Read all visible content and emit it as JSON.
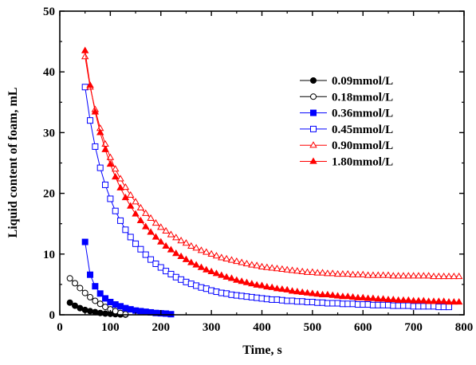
{
  "chart_data": {
    "type": "scatter",
    "title": "",
    "xlabel": "Time, s",
    "ylabel": "Liquid content of foam, mL",
    "xlim": [
      0,
      800
    ],
    "ylim": [
      0,
      50
    ],
    "xticks": [
      "0",
      "100",
      "200",
      "300",
      "400",
      "500",
      "600",
      "700",
      "800"
    ],
    "yticks": [
      "0",
      "10",
      "20",
      "30",
      "40",
      "50"
    ],
    "grid": false,
    "legend_position": "top-right",
    "series": [
      {
        "name": "0.09mmol/L",
        "color": "#000000",
        "marker": "circle",
        "filled": true,
        "x": [
          20,
          30,
          40,
          50,
          60,
          70,
          80,
          90,
          100,
          110,
          120,
          130
        ],
        "y": [
          2.0,
          1.5,
          1.1,
          0.8,
          0.6,
          0.45,
          0.3,
          0.2,
          0.15,
          0.1,
          0.05,
          0.02
        ]
      },
      {
        "name": "0.18mmol/L",
        "color": "#000000",
        "marker": "circle",
        "filled": false,
        "x": [
          20,
          30,
          40,
          50,
          60,
          70,
          80,
          90,
          100,
          110,
          120,
          130
        ],
        "y": [
          6.0,
          5.2,
          4.4,
          3.6,
          2.9,
          2.3,
          1.8,
          1.3,
          0.9,
          0.6,
          0.3,
          0.1
        ]
      },
      {
        "name": "0.36mmol/L",
        "color": "#0000ff",
        "marker": "square",
        "filled": true,
        "x": [
          50,
          60,
          70,
          80,
          90,
          100,
          110,
          120,
          130,
          140,
          150,
          160,
          170,
          180,
          190,
          200,
          210,
          220
        ],
        "y": [
          12.0,
          6.6,
          4.7,
          3.5,
          2.7,
          2.1,
          1.7,
          1.4,
          1.1,
          0.9,
          0.7,
          0.6,
          0.5,
          0.4,
          0.3,
          0.25,
          0.2,
          0.1
        ]
      },
      {
        "name": "0.45mmol/L",
        "color": "#0000ff",
        "marker": "square",
        "filled": false,
        "x": [
          50,
          60,
          70,
          80,
          90,
          100,
          110,
          120,
          130,
          140,
          150,
          160,
          170,
          180,
          190,
          200,
          210,
          220,
          230,
          240,
          250,
          260,
          270,
          280,
          290,
          300,
          310,
          320,
          330,
          340,
          350,
          360,
          370,
          380,
          390,
          400,
          410,
          420,
          430,
          440,
          450,
          460,
          470,
          480,
          490,
          500,
          510,
          520,
          530,
          540,
          550,
          560,
          570,
          580,
          590,
          600,
          610,
          620,
          630,
          640,
          650,
          660,
          670,
          680,
          690,
          700,
          710,
          720,
          730,
          740,
          750,
          760,
          770
        ],
        "y": [
          37.5,
          32.0,
          27.7,
          24.2,
          21.4,
          19.1,
          17.1,
          15.5,
          14.0,
          12.8,
          11.7,
          10.8,
          9.9,
          9.1,
          8.4,
          7.8,
          7.2,
          6.7,
          6.2,
          5.8,
          5.4,
          5.1,
          4.8,
          4.5,
          4.3,
          4.0,
          3.8,
          3.6,
          3.5,
          3.3,
          3.2,
          3.1,
          3.0,
          2.9,
          2.8,
          2.7,
          2.6,
          2.5,
          2.5,
          2.4,
          2.3,
          2.3,
          2.2,
          2.2,
          2.1,
          2.1,
          2.0,
          2.0,
          1.9,
          1.9,
          1.9,
          1.8,
          1.8,
          1.8,
          1.7,
          1.7,
          1.7,
          1.6,
          1.6,
          1.6,
          1.6,
          1.5,
          1.5,
          1.5,
          1.5,
          1.4,
          1.4,
          1.4,
          1.4,
          1.4,
          1.3,
          1.3,
          1.3
        ]
      },
      {
        "name": "0.90mmol/L",
        "color": "#ff0000",
        "marker": "triangle",
        "filled": false,
        "x": [
          50,
          60,
          70,
          80,
          90,
          100,
          110,
          120,
          130,
          140,
          150,
          160,
          170,
          180,
          190,
          200,
          210,
          220,
          230,
          240,
          250,
          260,
          270,
          280,
          290,
          300,
          310,
          320,
          330,
          340,
          350,
          360,
          370,
          380,
          390,
          400,
          410,
          420,
          430,
          440,
          450,
          460,
          470,
          480,
          490,
          500,
          510,
          520,
          530,
          540,
          550,
          560,
          570,
          580,
          590,
          600,
          610,
          620,
          630,
          640,
          650,
          660,
          670,
          680,
          690,
          700,
          710,
          720,
          730,
          740,
          750,
          760,
          770,
          780,
          790
        ],
        "y": [
          42.5,
          37.5,
          33.8,
          30.7,
          28.1,
          25.9,
          24.0,
          22.4,
          21.0,
          19.7,
          18.6,
          17.6,
          16.7,
          15.9,
          15.1,
          14.4,
          13.8,
          13.2,
          12.7,
          12.2,
          11.8,
          11.3,
          11.0,
          10.6,
          10.3,
          10.0,
          9.7,
          9.4,
          9.2,
          9.0,
          8.8,
          8.6,
          8.4,
          8.2,
          8.1,
          7.9,
          7.8,
          7.7,
          7.6,
          7.5,
          7.4,
          7.3,
          7.2,
          7.1,
          7.0,
          7.0,
          6.9,
          6.9,
          6.8,
          6.8,
          6.7,
          6.7,
          6.7,
          6.6,
          6.6,
          6.6,
          6.5,
          6.5,
          6.5,
          6.5,
          6.5,
          6.4,
          6.4,
          6.4,
          6.4,
          6.4,
          6.4,
          6.4,
          6.4,
          6.3,
          6.3,
          6.3,
          6.3,
          6.3,
          6.3
        ]
      },
      {
        "name": "1.80mmol/L",
        "color": "#ff0000",
        "marker": "triangle",
        "filled": true,
        "x": [
          50,
          60,
          70,
          80,
          90,
          100,
          110,
          120,
          130,
          140,
          150,
          160,
          170,
          180,
          190,
          200,
          210,
          220,
          230,
          240,
          250,
          260,
          270,
          280,
          290,
          300,
          310,
          320,
          330,
          340,
          350,
          360,
          370,
          380,
          390,
          400,
          410,
          420,
          430,
          440,
          450,
          460,
          470,
          480,
          490,
          500,
          510,
          520,
          530,
          540,
          550,
          560,
          570,
          580,
          590,
          600,
          610,
          620,
          630,
          640,
          650,
          660,
          670,
          680,
          690,
          700,
          710,
          720,
          730,
          740,
          750,
          760,
          770,
          780,
          790
        ],
        "y": [
          43.5,
          37.8,
          33.4,
          30.0,
          27.2,
          24.8,
          22.7,
          20.9,
          19.3,
          17.9,
          16.6,
          15.5,
          14.5,
          13.6,
          12.8,
          12.0,
          11.3,
          10.7,
          10.1,
          9.6,
          9.1,
          8.6,
          8.2,
          7.8,
          7.4,
          7.1,
          6.8,
          6.5,
          6.2,
          6.0,
          5.7,
          5.5,
          5.3,
          5.1,
          4.9,
          4.8,
          4.6,
          4.5,
          4.3,
          4.2,
          4.1,
          3.9,
          3.8,
          3.7,
          3.6,
          3.5,
          3.4,
          3.3,
          3.3,
          3.2,
          3.1,
          3.0,
          3.0,
          2.9,
          2.8,
          2.8,
          2.7,
          2.7,
          2.6,
          2.6,
          2.5,
          2.5,
          2.4,
          2.4,
          2.4,
          2.3,
          2.3,
          2.3,
          2.2,
          2.2,
          2.2,
          2.2,
          2.1,
          2.1,
          2.1
        ]
      }
    ]
  }
}
